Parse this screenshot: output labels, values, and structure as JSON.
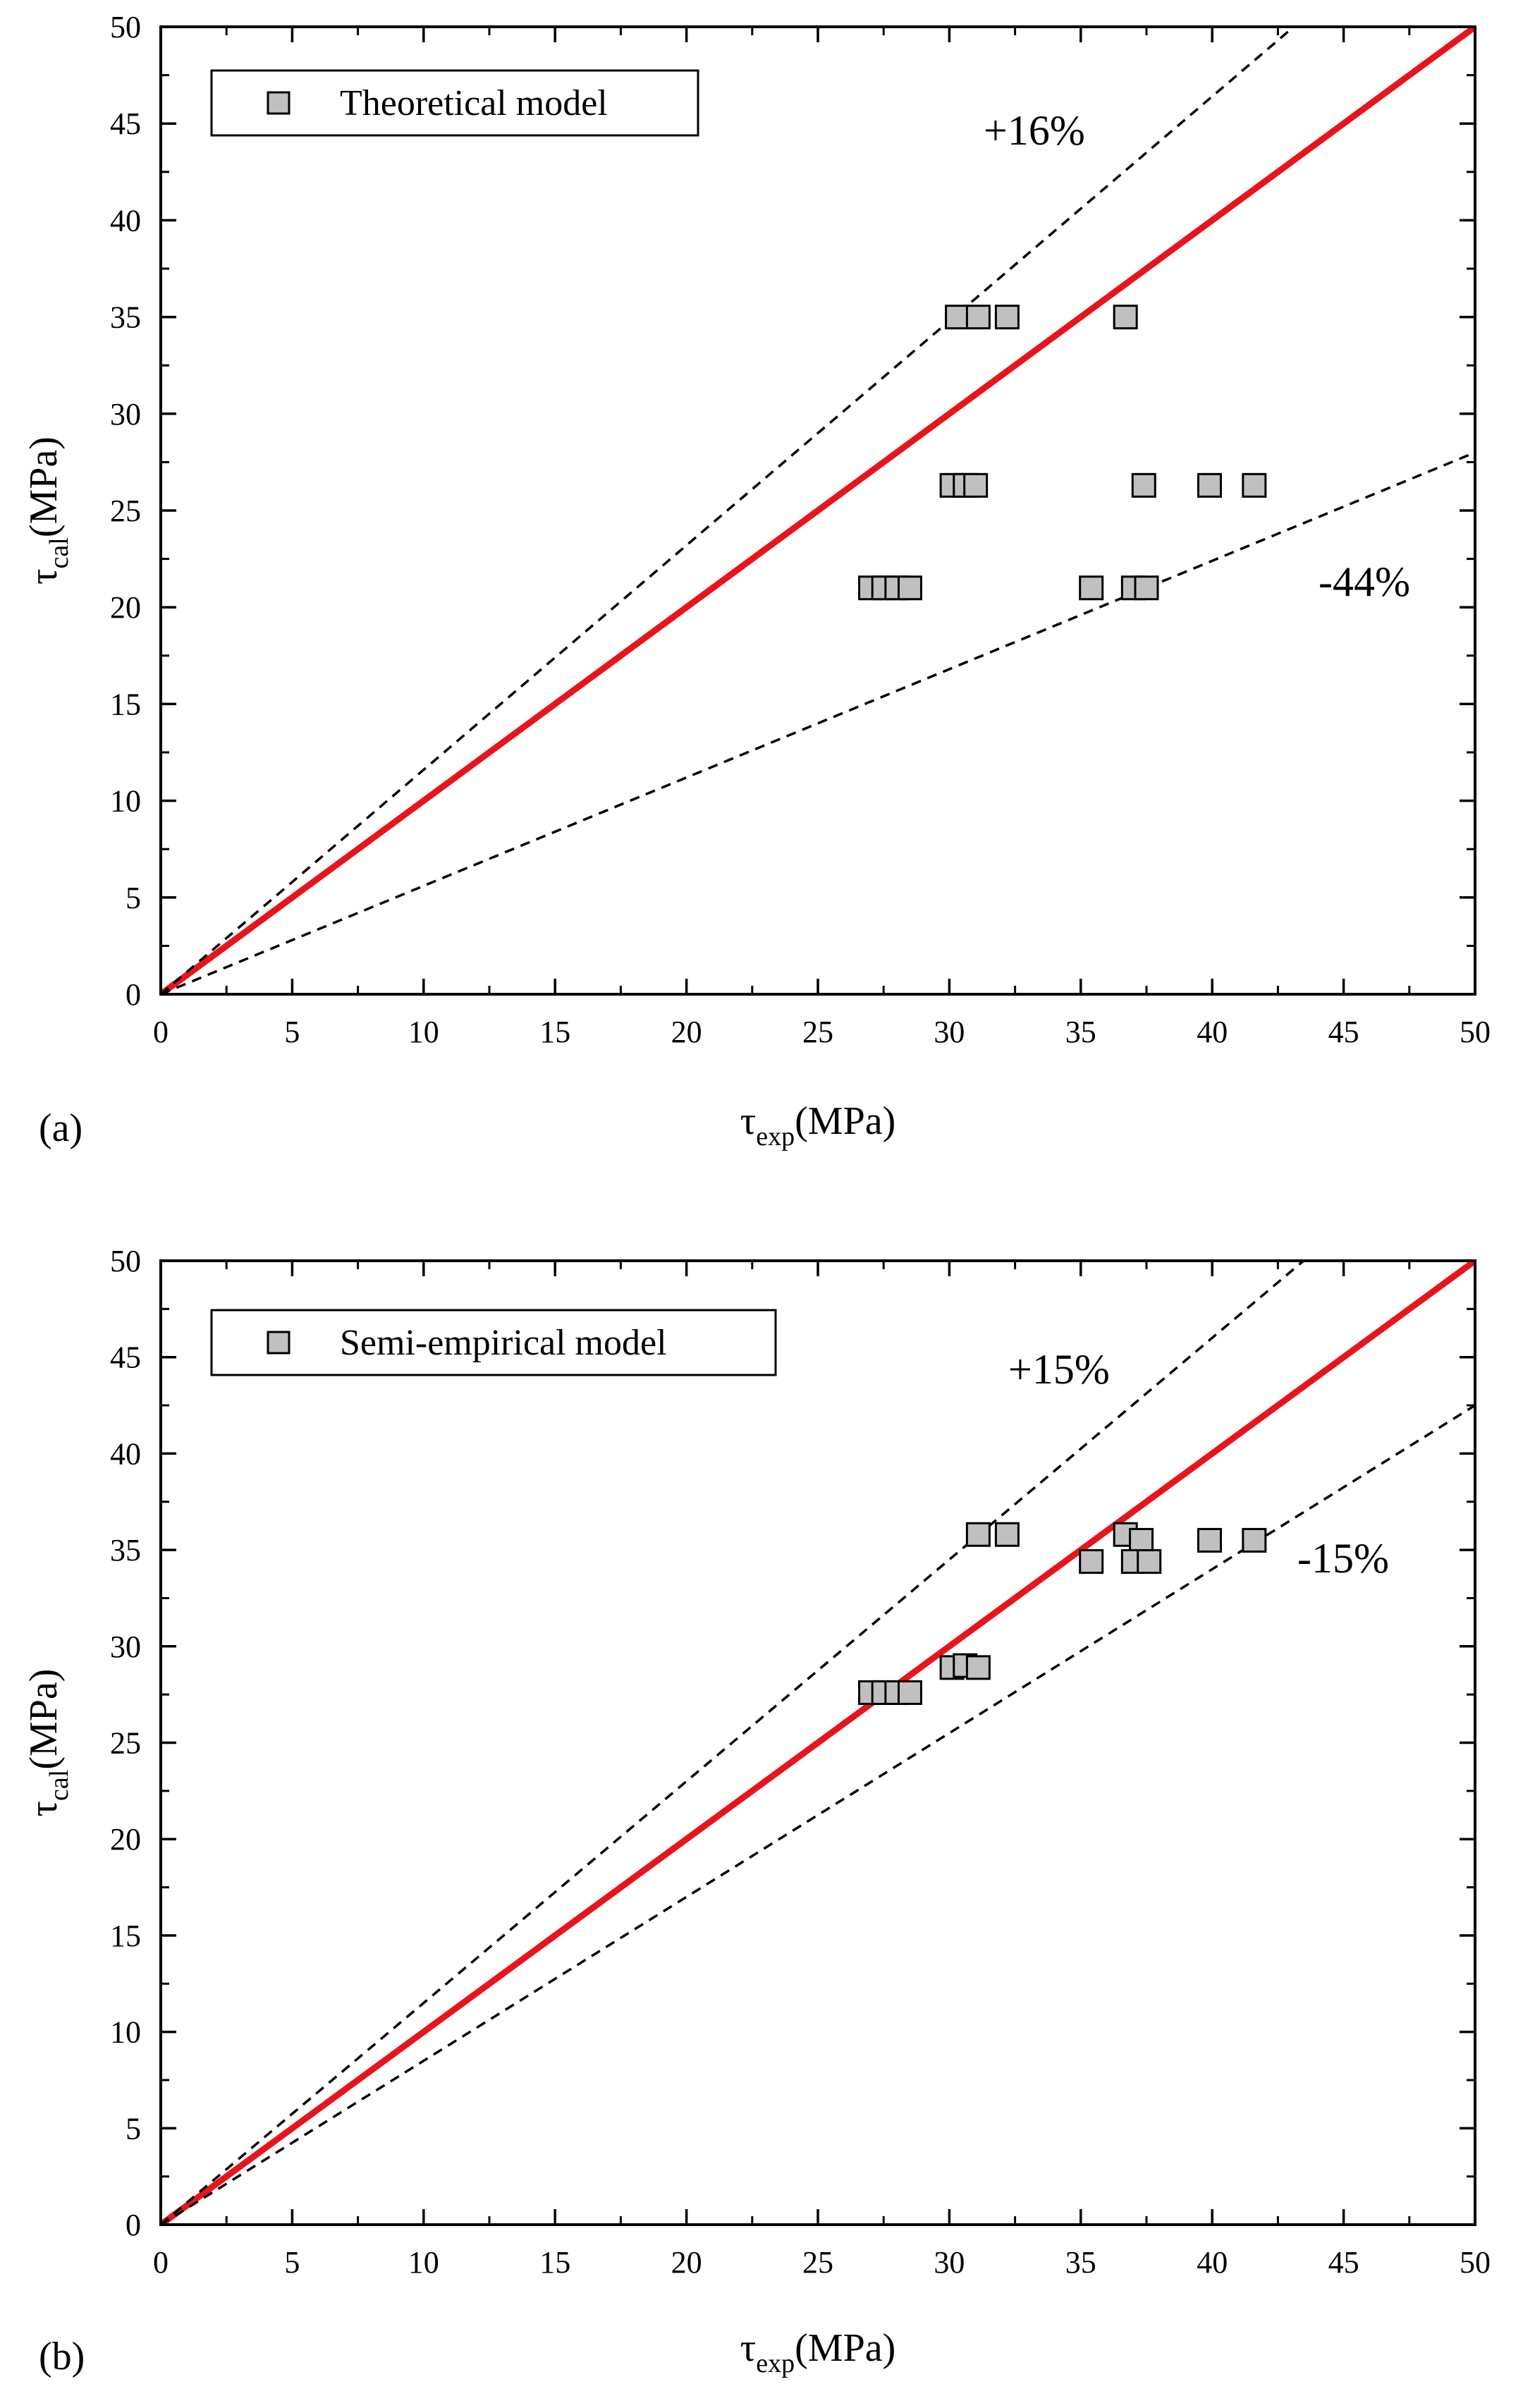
{
  "chart_data": [
    {
      "type": "scatter",
      "panel_label": "(a)",
      "xlabel": {
        "symbol": "τ",
        "sub": "exp",
        "unit": "(MPa)"
      },
      "ylabel": {
        "symbol": "τ",
        "sub": "cal",
        "unit": "(MPa)"
      },
      "xlim": [
        0,
        50
      ],
      "ylim": [
        0,
        50
      ],
      "xticks": [
        0,
        5,
        10,
        15,
        20,
        25,
        30,
        35,
        40,
        45,
        50
      ],
      "yticks": [
        0,
        5,
        10,
        15,
        20,
        25,
        30,
        35,
        40,
        45,
        50
      ],
      "legend": {
        "position": "top-left",
        "label": "Theoretical model"
      },
      "colors": {
        "equality_line": "#e8141c",
        "bound_lines": "#000000",
        "marker_fill": "#c0c0c0",
        "marker_edge": "#000000"
      },
      "lines": [
        {
          "name": "equality",
          "slope": 1.0,
          "style": "solid"
        },
        {
          "name": "upper",
          "slope": 1.16,
          "style": "dashed",
          "label": "+16%"
        },
        {
          "name": "lower",
          "slope": 0.56,
          "style": "dashed",
          "label": "-44%"
        }
      ],
      "series": [
        {
          "name": "Theoretical model",
          "points": [
            [
              30.3,
              35.0
            ],
            [
              31.1,
              35.0
            ],
            [
              32.2,
              35.0
            ],
            [
              36.7,
              35.0
            ],
            [
              30.1,
              26.3
            ],
            [
              30.6,
              26.3
            ],
            [
              31.0,
              26.3
            ],
            [
              37.4,
              26.3
            ],
            [
              39.9,
              26.3
            ],
            [
              41.6,
              26.3
            ],
            [
              27.0,
              21.0
            ],
            [
              27.5,
              21.0
            ],
            [
              28.0,
              21.0
            ],
            [
              28.5,
              21.0
            ],
            [
              35.4,
              21.0
            ],
            [
              37.0,
              21.0
            ],
            [
              37.5,
              21.0
            ]
          ]
        }
      ]
    },
    {
      "type": "scatter",
      "panel_label": "(b)",
      "xlabel": {
        "symbol": "τ",
        "sub": "exp",
        "unit": "(MPa)"
      },
      "ylabel": {
        "symbol": "τ",
        "sub": "cal",
        "unit": "(MPa)"
      },
      "xlim": [
        0,
        50
      ],
      "ylim": [
        0,
        50
      ],
      "xticks": [
        0,
        5,
        10,
        15,
        20,
        25,
        30,
        35,
        40,
        45,
        50
      ],
      "yticks": [
        0,
        5,
        10,
        15,
        20,
        25,
        30,
        35,
        40,
        45,
        50
      ],
      "legend": {
        "position": "top-left",
        "label": "Semi-empirical model"
      },
      "colors": {
        "equality_line": "#e8141c",
        "bound_lines": "#000000",
        "marker_fill": "#c0c0c0",
        "marker_edge": "#000000"
      },
      "lines": [
        {
          "name": "equality",
          "slope": 1.0,
          "style": "solid"
        },
        {
          "name": "upper",
          "slope": 1.15,
          "style": "dashed",
          "label": "+15%"
        },
        {
          "name": "lower",
          "slope": 0.85,
          "style": "dashed",
          "label": "-15%"
        }
      ],
      "series": [
        {
          "name": "Semi-empirical model",
          "points": [
            [
              31.1,
              35.8
            ],
            [
              32.2,
              35.8
            ],
            [
              36.7,
              35.8
            ],
            [
              37.3,
              35.5
            ],
            [
              39.9,
              35.5
            ],
            [
              41.6,
              35.5
            ],
            [
              35.4,
              34.4
            ],
            [
              37.0,
              34.4
            ],
            [
              37.6,
              34.4
            ],
            [
              30.1,
              28.9
            ],
            [
              30.6,
              29.0
            ],
            [
              31.1,
              28.9
            ],
            [
              27.0,
              27.6
            ],
            [
              27.5,
              27.6
            ],
            [
              28.0,
              27.6
            ],
            [
              28.5,
              27.6
            ]
          ]
        }
      ]
    }
  ]
}
